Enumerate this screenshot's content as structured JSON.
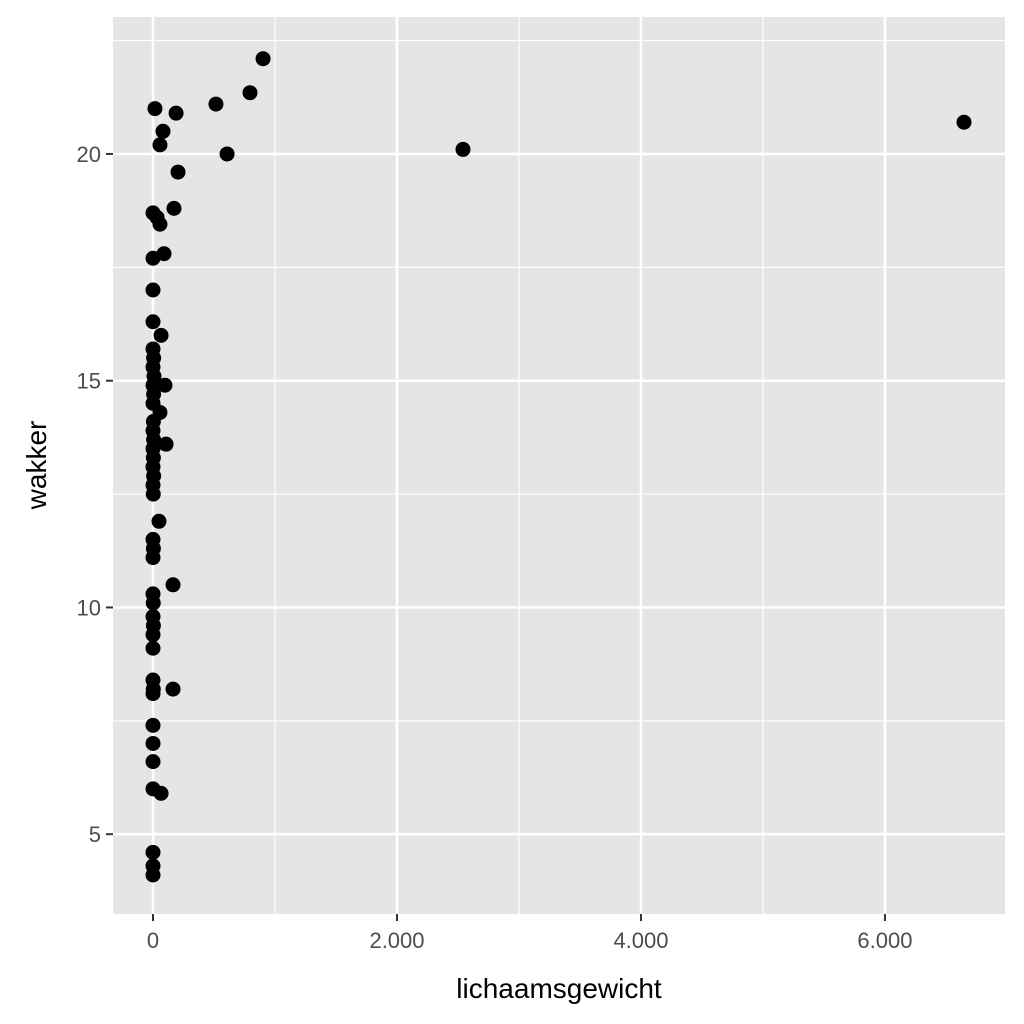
{
  "chart_data": {
    "type": "scatter",
    "title": "",
    "xlabel": "lichaamsgewicht",
    "ylabel": "wakker",
    "xlim": [
      -328,
      6984
    ],
    "ylim": [
      3.24,
      23.02
    ],
    "x_ticks": [
      0,
      2000,
      4000,
      6000
    ],
    "x_tick_labels": [
      "0",
      "2.000",
      "4.000",
      "6.000"
    ],
    "y_ticks": [
      5,
      10,
      15,
      20
    ],
    "y_tick_labels": [
      "5",
      "10",
      "15",
      "20"
    ],
    "grid": true,
    "colors": {
      "panel": "#e5e5e5",
      "grid": "#ffffff",
      "point": "#000000"
    },
    "points": [
      [
        902,
        22.1
      ],
      [
        795,
        21.35
      ],
      [
        516,
        21.1
      ],
      [
        16,
        21.0
      ],
      [
        189,
        20.9
      ],
      [
        82,
        20.5
      ],
      [
        57,
        20.2
      ],
      [
        607,
        20.0
      ],
      [
        2541,
        20.1
      ],
      [
        6648,
        20.7
      ],
      [
        205,
        19.6
      ],
      [
        172,
        18.8
      ],
      [
        0,
        18.7
      ],
      [
        33,
        18.6
      ],
      [
        57,
        18.45
      ],
      [
        90,
        17.8
      ],
      [
        0,
        17.7
      ],
      [
        0,
        17.0
      ],
      [
        0,
        16.3
      ],
      [
        66,
        16.0
      ],
      [
        0,
        15.7
      ],
      [
        5,
        15.5
      ],
      [
        0,
        15.3
      ],
      [
        8,
        15.1
      ],
      [
        0,
        14.9
      ],
      [
        98,
        14.9
      ],
      [
        5,
        14.7
      ],
      [
        0,
        14.5
      ],
      [
        57,
        14.3
      ],
      [
        3,
        14.1
      ],
      [
        0,
        13.9
      ],
      [
        5,
        13.7
      ],
      [
        107,
        13.6
      ],
      [
        0,
        13.5
      ],
      [
        3,
        13.3
      ],
      [
        0,
        13.1
      ],
      [
        5,
        12.9
      ],
      [
        0,
        12.7
      ],
      [
        2,
        12.5
      ],
      [
        49,
        11.9
      ],
      [
        0,
        11.5
      ],
      [
        3,
        11.3
      ],
      [
        0,
        11.1
      ],
      [
        164,
        10.5
      ],
      [
        0,
        10.3
      ],
      [
        2,
        10.1
      ],
      [
        0,
        9.8
      ],
      [
        3,
        9.6
      ],
      [
        0,
        9.4
      ],
      [
        0,
        9.1
      ],
      [
        164,
        8.2
      ],
      [
        0,
        8.4
      ],
      [
        2,
        8.2
      ],
      [
        0,
        8.1
      ],
      [
        0,
        7.4
      ],
      [
        0,
        7.0
      ],
      [
        0,
        6.6
      ],
      [
        0,
        6.0
      ],
      [
        66,
        5.9
      ],
      [
        0,
        4.6
      ],
      [
        0,
        4.3
      ],
      [
        0,
        4.1
      ]
    ]
  }
}
